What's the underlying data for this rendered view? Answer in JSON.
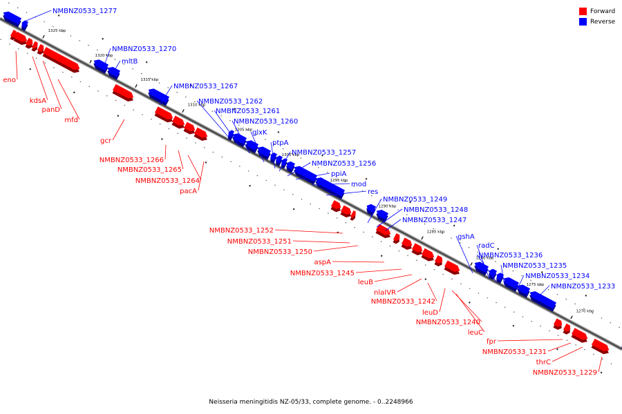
{
  "caption": "Neisseria meningitidis NZ-05/33, complete genome. - 0..2248966",
  "legend": {
    "forward_label": "Forward",
    "reverse_label": "Reverse",
    "forward_color": "#ff0000",
    "reverse_color": "#0000ff"
  },
  "ticks": [
    "1325 kbp",
    "1320 kbp",
    "1315 kbp",
    "1310 kbp",
    "1305 kbp",
    "1300 kbp",
    "1295 kbp",
    "1290 kbp",
    "1285 kbp",
    "1280 kbp",
    "1275 kbp",
    "1270 kbp"
  ],
  "reverse_labels": [
    "NMBNZ0533_1277",
    "NMBNZ0533_1270",
    "mltB",
    "NMBNZ0533_1267",
    "NMBNZ0533_1262",
    "NMBNZ0533_1261",
    "NMBNZ0533_1260",
    "glxK",
    "ptpA",
    "NMBNZ0533_1257",
    "NMBNZ0533_1256",
    "ppiA",
    "mod",
    "res",
    "NMBNZ0533_1249",
    "NMBNZ0533_1248",
    "NMBNZ0533_1247",
    "gshA",
    "radC",
    "NMBNZ0533_1236",
    "NMBNZ0533_1235",
    "NMBNZ0533_1234",
    "NMBNZ0533_1233"
  ],
  "forward_labels": [
    "eno",
    "kdsA",
    "panD",
    "mfd",
    "gcr",
    "NMBNZ0533_1266",
    "NMBNZ0533_1265",
    "NMBNZ0533_1264",
    "pacA",
    "NMBNZ0533_1252",
    "NMBNZ0533_1251",
    "NMBNZ0533_1250",
    "aspA",
    "NMBNZ0533_1245",
    "leuB",
    "nlaIVR",
    "NMBNZ0533_1242",
    "leuD",
    "NMBNZ0533_1240",
    "leuC",
    "fpr",
    "NMBNZ0533_1231",
    "thrC",
    "NMBNZ0533_1229"
  ]
}
